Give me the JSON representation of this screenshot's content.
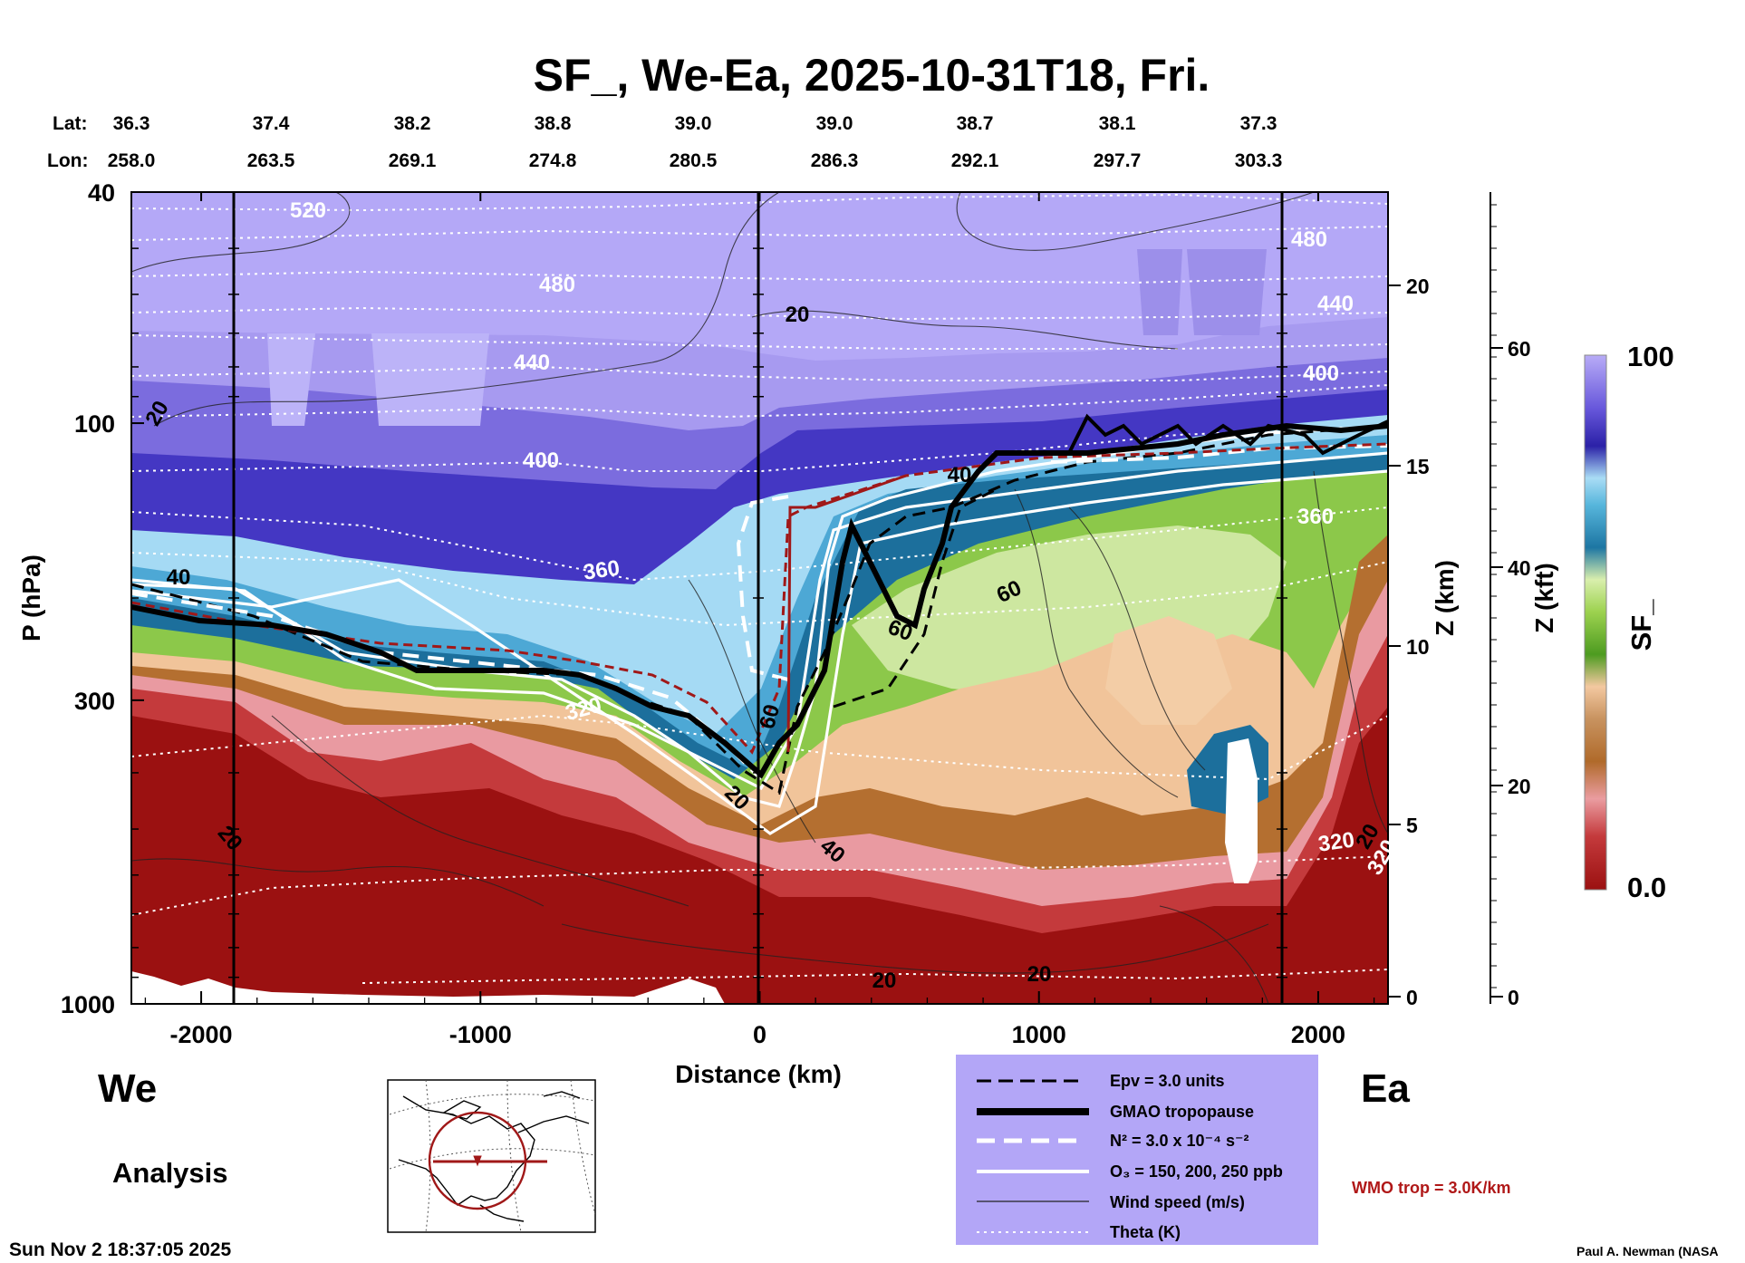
{
  "chart_data": {
    "type": "heatmap",
    "title": "SF_, We-Ea, 2025-10-31T18, Fri.",
    "xlabel": "Distance (km)",
    "ylabel": "P (hPa)",
    "xlim": [
      -2250,
      2250
    ],
    "ylim_hpa": [
      1000,
      40
    ],
    "x_ticks": [
      "-2000",
      "-1000",
      "0",
      "1000",
      "2000"
    ],
    "x_tick_values": [
      -2000,
      -1000,
      0,
      1000,
      2000
    ],
    "y_ticks": [
      "40",
      "100",
      "300",
      "1000"
    ],
    "y_tick_values": [
      40,
      100,
      300,
      1000
    ],
    "lat_label": "Lat:",
    "lon_label": "Lon:",
    "lat": [
      "36.3",
      "37.4",
      "38.2",
      "38.8",
      "39.0",
      "39.0",
      "38.7",
      "38.1",
      "37.3"
    ],
    "lon": [
      "258.0",
      "263.5",
      "269.1",
      "274.8",
      "280.5",
      "286.3",
      "292.1",
      "297.7",
      "303.3"
    ],
    "z_km_label": "Z (km)",
    "z_km_ticks": [
      "20",
      "15",
      "10",
      "5",
      "0"
    ],
    "z_kft_label": "Z (kft)",
    "z_kft_ticks": [
      "60",
      "40",
      "20",
      "0"
    ],
    "colorbar": {
      "label": "SF_",
      "min_label": "0.0",
      "max_label": "100",
      "min": 0.0,
      "max": 100
    },
    "theta_contour_labels": [
      "520",
      "480",
      "440",
      "400",
      "360",
      "320",
      "480",
      "440",
      "400",
      "360",
      "320",
      "320"
    ],
    "wind_contour_labels": [
      "20",
      "20",
      "20",
      "40",
      "60",
      "20",
      "40",
      "40",
      "60",
      "60",
      "20",
      "20",
      "20"
    ],
    "west_label": "We",
    "east_label": "Ea",
    "analysis_label": "Analysis",
    "timestamp": "Sun Nov  2 18:37:05 2025",
    "credit": "Paul A. Newman (NASA",
    "wmo_note": "WMO trop = 3.0K/km",
    "legend": [
      {
        "label": "Epv = 3.0 units"
      },
      {
        "label": "GMAO tropopause"
      },
      {
        "label": "N² = 3.0 x 10⁻⁴ s⁻²"
      },
      {
        "label": "O₃ = 150, 200, 250 ppb"
      },
      {
        "label": "Wind speed (m/s)"
      },
      {
        "label": "Theta (K)"
      }
    ],
    "colors": {
      "legend_bg": "#b3a6f7",
      "wmo_red": "#b01818",
      "strat_top": "#b4a8f7",
      "trop_red": "#9c1112"
    }
  }
}
